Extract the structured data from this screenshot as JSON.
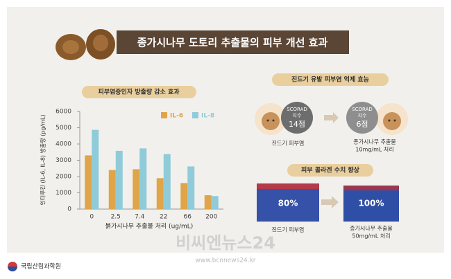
{
  "title": "종가시나무 도토리 추출물의 피부 개선 효과",
  "chart_data": {
    "type": "bar",
    "title": "피부염증인자 방출량 감소 효과",
    "y_label": "인터루킨 (IL-6, IL-8) 방출량 (pg/mL)",
    "x_label": "붉가시나무 추출물 처리 (ug/mL)",
    "categories": [
      "0",
      "2.5",
      "7.4",
      "22",
      "66",
      "200"
    ],
    "series": [
      {
        "name": "IL-6",
        "color": "#e0a449",
        "values": [
          3300,
          2400,
          2450,
          1900,
          1600,
          850
        ]
      },
      {
        "name": "IL-8",
        "color": "#8fcbd9",
        "values": [
          4870,
          3580,
          3730,
          3380,
          2620,
          800
        ]
      }
    ],
    "ylim": [
      0,
      6000
    ],
    "yticks": [
      0,
      1000,
      2000,
      3000,
      4000,
      5000,
      6000
    ],
    "grid": false
  },
  "mite_panel": {
    "title": "진드기 유발 피부염 억제 효능",
    "before": {
      "index_name": "SCORAD",
      "index_unit": "지수",
      "score": "14점",
      "caption": "진드기 피부염"
    },
    "after": {
      "index_name": "SCORAD",
      "index_unit": "지수",
      "score": "6점",
      "caption": [
        "종가시나무 추출물",
        "10mg/mL 처리"
      ]
    }
  },
  "collagen_panel": {
    "title": "피부 콜라겐 수치 향상",
    "before": {
      "value": "80%",
      "caption": "진드기 피부염"
    },
    "after": {
      "value": "100%",
      "caption": [
        "종가시나무 추출물",
        "50mg/mL 처리"
      ]
    }
  },
  "watermark": {
    "name": "비씨엔뉴스24",
    "url": "www.bcnnews24.kr"
  },
  "footer": {
    "org": "국립산림과학원"
  }
}
